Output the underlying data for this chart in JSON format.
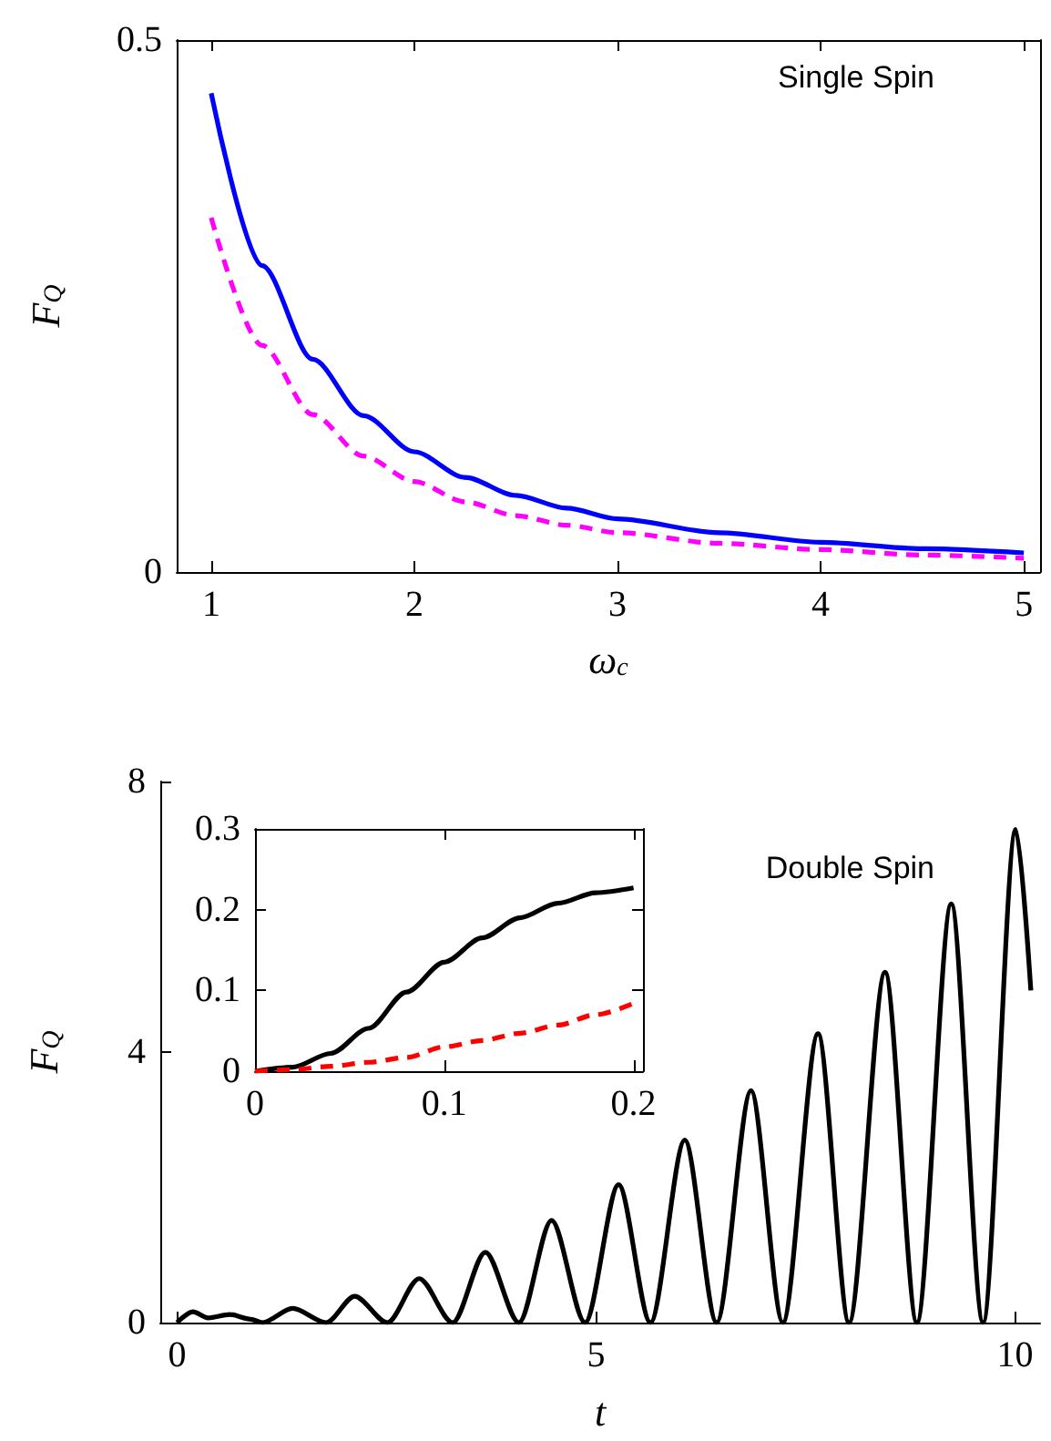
{
  "chart_data": [
    {
      "type": "line",
      "xlabel": "ω$_{c}$",
      "ylabel": "F$_{Q}$",
      "annotations": [
        "Single Spin"
      ],
      "x": [
        1,
        1.25,
        1.5,
        1.75,
        2,
        2.25,
        2.5,
        2.75,
        3,
        3.5,
        4,
        4.5,
        5
      ],
      "xlim": [
        0.83,
        5.08
      ],
      "ylim": [
        0,
        0.5
      ],
      "xticks": [
        1,
        2,
        3,
        4,
        5
      ],
      "yticks": [
        0,
        0.5
      ],
      "marker": "none",
      "grid": false,
      "series": [
        {
          "color": "#0000ff",
          "line_style": "solid",
          "values": [
            0.45,
            0.288,
            0.2,
            0.147,
            0.113,
            0.089,
            0.072,
            0.06,
            0.05,
            0.037,
            0.028,
            0.022,
            0.018
          ]
        },
        {
          "color": "#ff00ff",
          "line_style": "dashed",
          "values": [
            0.333,
            0.213,
            0.148,
            0.109,
            0.085,
            0.066,
            0.053,
            0.044,
            0.037,
            0.027,
            0.021,
            0.016,
            0.013
          ]
        }
      ]
    },
    {
      "type": "line",
      "xlabel": "t",
      "ylabel": "F$_{Q}$",
      "annotations": [
        "Double Spin"
      ],
      "x": [
        0,
        0.19,
        0.37,
        0.63,
        0.88,
        1.02,
        1.38,
        1.78,
        2.12,
        2.51,
        2.89,
        3.29,
        3.68,
        4.08,
        4.47,
        4.87,
        5.27,
        5.65,
        6.06,
        6.44,
        6.85,
        7.23,
        7.65,
        8.02,
        8.45,
        8.83,
        9.24,
        9.62,
        10.01,
        10.19
      ],
      "xlim": [
        -0.2,
        10.3
      ],
      "ylim": [
        0,
        8
      ],
      "xticks": [
        0,
        5,
        10
      ],
      "yticks": [
        0,
        4,
        8
      ],
      "marker": "none",
      "grid": false,
      "series": [
        {
          "color": "#000000",
          "line_style": "solid",
          "values": [
            0,
            0.16,
            0.07,
            0.12,
            0.05,
            0,
            0.21,
            0,
            0.39,
            0,
            0.65,
            0,
            1.04,
            0,
            1.51,
            0,
            2.04,
            0,
            2.7,
            0,
            3.43,
            0,
            4.27,
            0,
            5.18,
            0,
            6.19,
            0,
            7.29,
            4.91
          ]
        }
      ]
    },
    {
      "type": "line",
      "x": [
        0,
        0.02,
        0.04,
        0.06,
        0.08,
        0.1,
        0.12,
        0.14,
        0.16,
        0.18,
        0.2
      ],
      "xlim": [
        0,
        0.205
      ],
      "ylim": [
        0,
        0.3
      ],
      "xticks": [
        0,
        0.1,
        0.2
      ],
      "yticks": [
        0,
        0.1,
        0.2,
        0.3
      ],
      "marker": "none",
      "grid": false,
      "series": [
        {
          "color": "#000000",
          "line_style": "solid",
          "values": [
            0,
            0.005,
            0.022,
            0.053,
            0.098,
            0.135,
            0.165,
            0.19,
            0.208,
            0.221,
            0.227
          ]
        },
        {
          "color": "#ff0000",
          "line_style": "dashed",
          "values": [
            0,
            0.002,
            0.006,
            0.011,
            0.017,
            0.03,
            0.038,
            0.047,
            0.057,
            0.07,
            0.084
          ]
        }
      ]
    }
  ]
}
